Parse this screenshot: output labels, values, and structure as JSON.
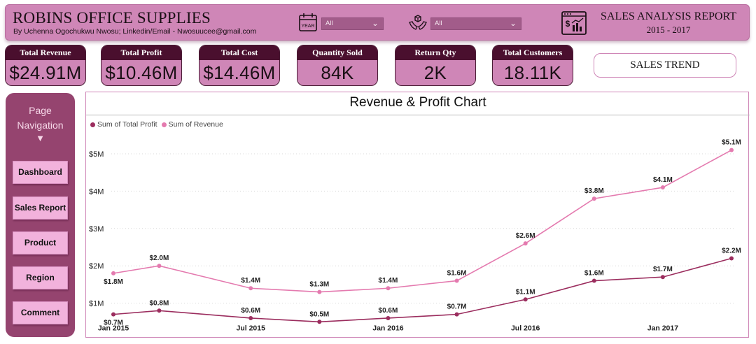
{
  "header": {
    "title": "ROBINS OFFICE SUPPLIES",
    "subtitle": "By Uchenna Ogochukwu Nwosu; Linkedin/Email - Nwosuucee@gmail.com",
    "year_icon_label": "YEAR",
    "year_slicer_value": "All",
    "product_slicer_value": "All",
    "report_title": "SALES ANALYSIS REPORT",
    "report_years": "2015 - 2017"
  },
  "kpis": [
    {
      "label": "Total Revenue",
      "value": "$24.91M"
    },
    {
      "label": "Total Profit",
      "value": "$10.46M"
    },
    {
      "label": "Total Cost",
      "value": "$14.46M"
    },
    {
      "label": "Quantity Sold",
      "value": "84K"
    },
    {
      "label": "Return Qty",
      "value": "2K"
    },
    {
      "label": "Total Customers",
      "value": "18.11K"
    }
  ],
  "trend_button": "SALES TREND",
  "nav": {
    "title_line1": "Page",
    "title_line2": "Navigation",
    "arrow": "▼",
    "items": [
      {
        "label": "Dashboard"
      },
      {
        "label": "Sales Report"
      },
      {
        "label": "Product"
      },
      {
        "label": "Region"
      },
      {
        "label": "Comment"
      }
    ]
  },
  "colors": {
    "header_bg": "#cf86b7",
    "kpi_label_bg": "#4a0f2e",
    "sidebar_bg": "#95446f",
    "nav_button_bg": "#f2b2dc",
    "profit_line": "#9b2d5e",
    "revenue_line": "#e47aaf"
  },
  "chart_data": {
    "type": "line",
    "title": "Revenue & Profit Chart",
    "xlabel": "",
    "ylabel": "",
    "x": [
      "2015-01",
      "2015-03",
      "2015-07",
      "2015-10",
      "2016-01",
      "2016-04",
      "2016-07",
      "2016-10",
      "2017-01",
      "2017-04"
    ],
    "x_tick_labels": [
      "Jan 2015",
      "Jul 2015",
      "Jan 2016",
      "Jul 2016",
      "Jan 2017"
    ],
    "x_tick_positions": [
      "2015-01",
      "2015-07",
      "2016-01",
      "2016-07",
      "2017-01"
    ],
    "y_ticks": [
      1,
      2,
      3,
      4,
      5
    ],
    "y_tick_labels": [
      "$1M",
      "$2M",
      "$3M",
      "$4M",
      "$5M"
    ],
    "ylim": [
      0.5,
      5.5
    ],
    "grid": "horizontal dotted",
    "legend_position": "top-left",
    "series": [
      {
        "name": "Sum of Total Profit",
        "color": "#9b2d5e",
        "values": [
          0.7,
          0.8,
          0.6,
          0.5,
          0.6,
          0.7,
          1.1,
          1.6,
          1.7,
          2.2
        ],
        "labels": [
          "$0.7M",
          "$0.8M",
          "$0.6M",
          "$0.5M",
          "$0.6M",
          "$0.7M",
          "$1.1M",
          "$1.6M",
          "$1.7M",
          "$2.2M"
        ]
      },
      {
        "name": "Sum of Revenue",
        "color": "#e47aaf",
        "values": [
          1.8,
          2.0,
          1.4,
          1.3,
          1.4,
          1.6,
          2.6,
          3.8,
          4.1,
          5.1
        ],
        "labels": [
          "$1.8M",
          "$2.0M",
          "$1.4M",
          "$1.3M",
          "$1.4M",
          "$1.6M",
          "$2.6M",
          "$3.8M",
          "$4.1M",
          "$5.1M"
        ]
      }
    ]
  }
}
